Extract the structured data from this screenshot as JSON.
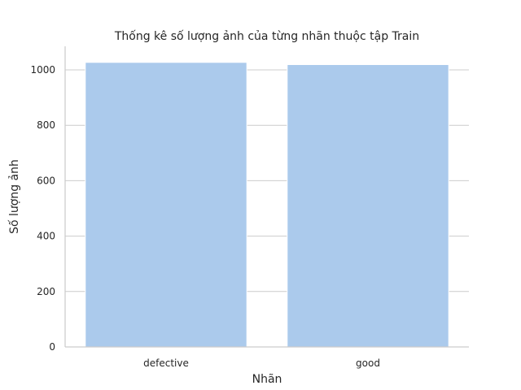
{
  "chart_data": {
    "type": "bar",
    "title": "Thống kê số lượng ảnh của từng nhãn thuộc tập Train",
    "xlabel": "Nhãn",
    "ylabel": "Số lượng ảnh",
    "categories": [
      "defective",
      "good"
    ],
    "values": [
      1027,
      1019
    ],
    "ylim": [
      0,
      1085
    ],
    "yticks": [
      0,
      200,
      400,
      600,
      800,
      1000
    ],
    "grid": "horizontal",
    "colors": {
      "bar": "#abcaec",
      "grid": "#cccccc",
      "axis": "#cccccc",
      "text": "#262626"
    }
  }
}
